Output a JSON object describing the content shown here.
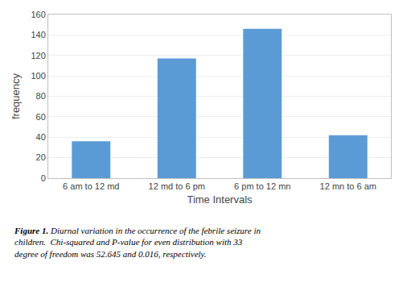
{
  "chart_data": {
    "type": "bar",
    "categories": [
      "6 am to 12 md",
      "12 md to 6 pm",
      "6 pm to 12 mn",
      "12 mn to 6 am"
    ],
    "values": [
      36,
      117,
      146,
      42
    ],
    "color": "#5b9bd5",
    "xlabel": "Time Intervals",
    "ylabel": "frequency",
    "ylim": [
      0,
      160
    ],
    "yticks": [
      0,
      20,
      40,
      60,
      80,
      100,
      120,
      140,
      160
    ],
    "grid": true,
    "annotations": [
      "Figure 1.",
      " Diurnal variation in the occurrence of the febrile seizure in\nchildren.  Chi-squared and P-value for even distribution with 33\ndegree of freedom was 52.645 and 0.016, respectively."
    ]
  }
}
